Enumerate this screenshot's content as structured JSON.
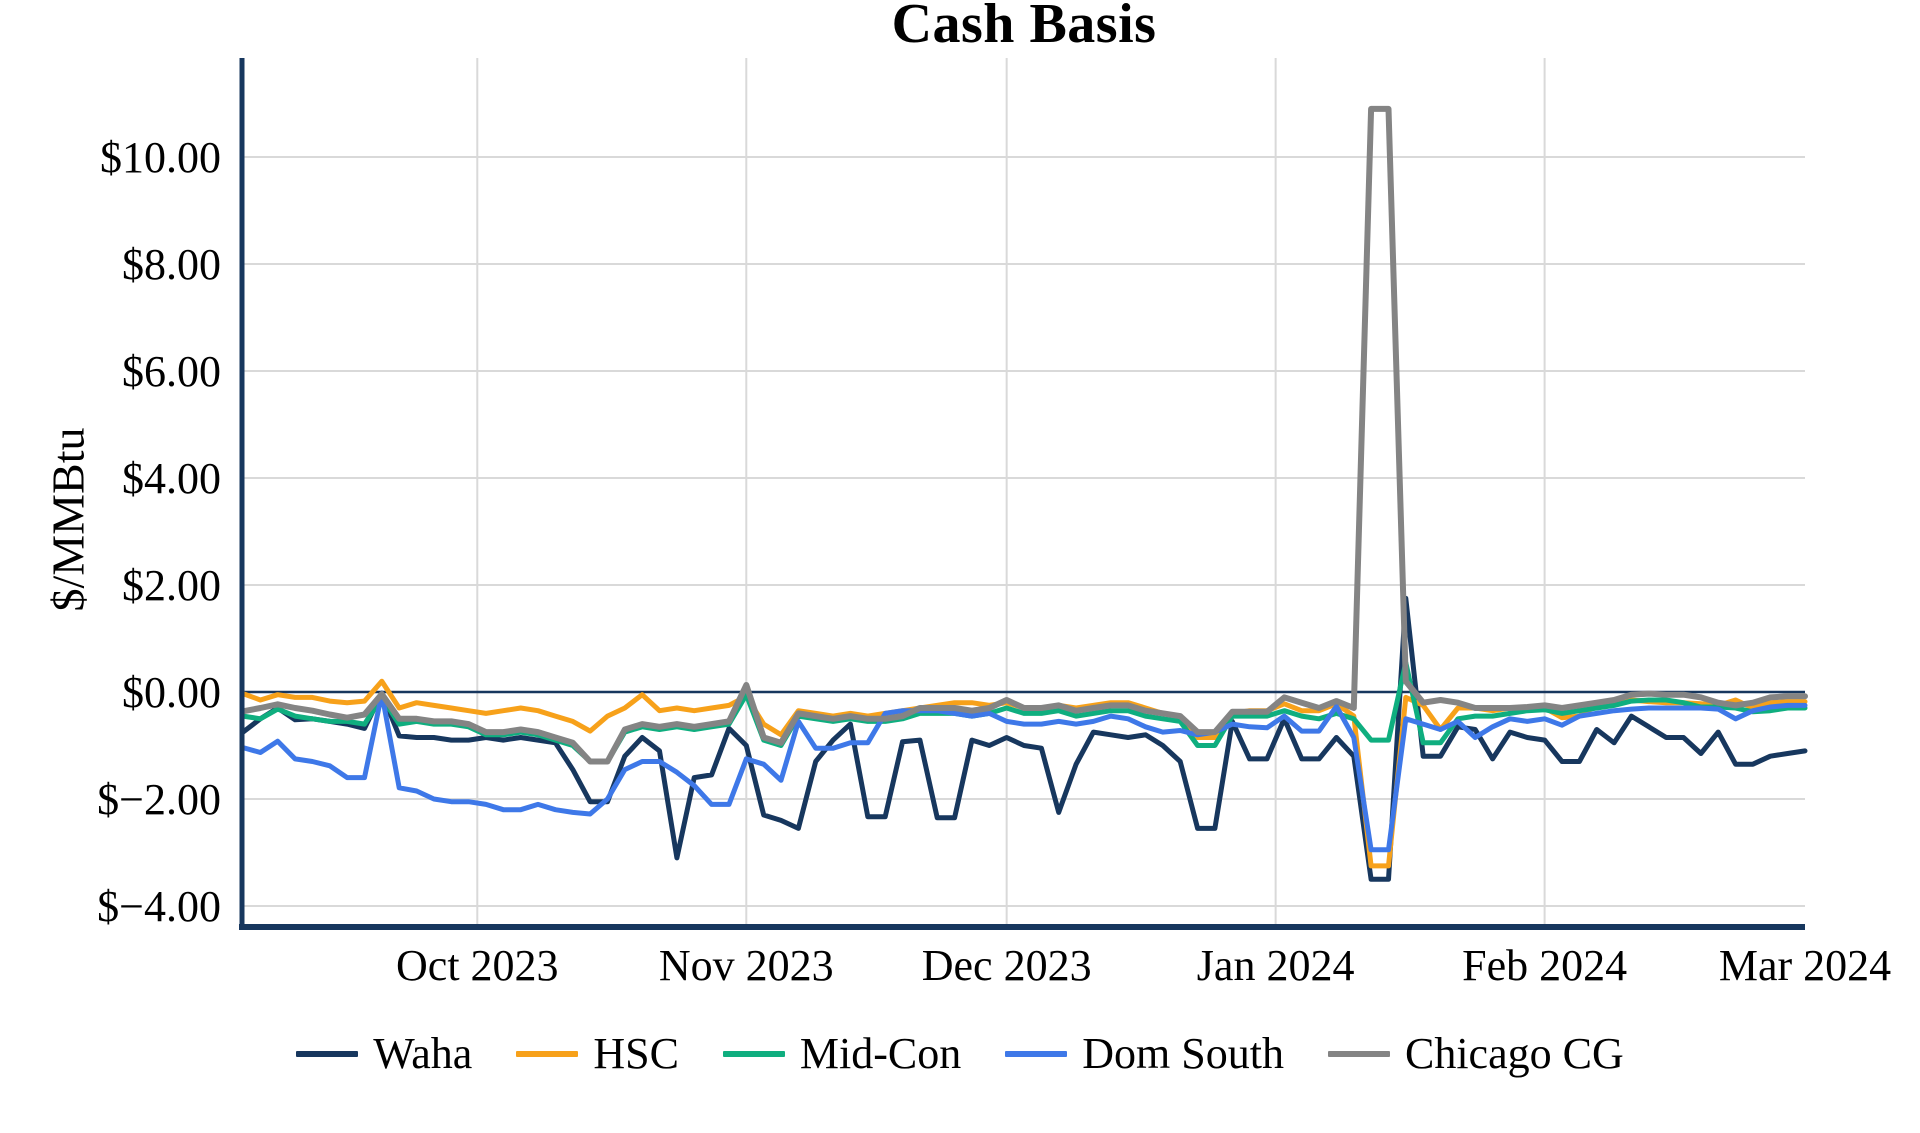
{
  "title": "Cash Basis",
  "y_axis": {
    "title": "$/MMBtu"
  },
  "legend": {
    "items": [
      {
        "label": "Waha",
        "color": "#17375E"
      },
      {
        "label": "HSC",
        "color": "#F7A11A"
      },
      {
        "label": "Mid-Con",
        "color": "#0FAE7F"
      },
      {
        "label": "Dom South",
        "color": "#3E78E8"
      },
      {
        "label": "Chicago CG",
        "color": "#848484"
      }
    ]
  },
  "colors": {
    "axis": "#17375E",
    "zero_line": "#17375E",
    "gridline": "#D9D9D9",
    "background": "#FFFFFF",
    "text": "#000000"
  },
  "chart_data": {
    "type": "line",
    "title": "Cash Basis",
    "ylabel": "$/MMBtu",
    "xlabel": "",
    "ylim": [
      -4.4,
      11.85
    ],
    "grid": true,
    "legend_position": "bottom",
    "x_note": "Daily cash basis sampled every 2 days, early Sep 2023 through Mar 2024; fraction 0 = left edge (~Sep 4 2023), 1 = right edge (~Mar 1 2024)",
    "x_ticks": {
      "labels": [
        "Oct 2023",
        "Nov 2023",
        "Dec 2023",
        "Jan 2024",
        "Feb 2024",
        "Mar 2024"
      ],
      "fracs": [
        0.15,
        0.3222,
        0.4889,
        0.6611,
        0.8333,
        1.0
      ]
    },
    "y_ticks": {
      "labels": [
        "$10.00",
        "$8.00",
        "$6.00",
        "$4.00",
        "$2.00",
        "$0.00",
        "$−2.00",
        "$−4.00"
      ],
      "values": [
        10,
        8,
        6,
        4,
        2,
        0,
        -2,
        -4
      ]
    },
    "series": [
      {
        "name": "Waha",
        "color": "#17375E",
        "values": [
          -0.75,
          -0.5,
          -0.3,
          -0.52,
          -0.5,
          -0.55,
          -0.6,
          -0.68,
          -0.02,
          -0.82,
          -0.85,
          -0.85,
          -0.9,
          -0.9,
          -0.85,
          -0.9,
          -0.85,
          -0.9,
          -0.95,
          -1.45,
          -2.05,
          -2.05,
          -1.2,
          -0.85,
          -1.1,
          -3.1,
          -1.6,
          -1.55,
          -0.68,
          -1.0,
          -2.3,
          -2.4,
          -2.55,
          -1.3,
          -0.9,
          -0.6,
          -2.33,
          -2.33,
          -0.93,
          -0.9,
          -2.35,
          -2.35,
          -0.9,
          -1.0,
          -0.85,
          -1.0,
          -1.05,
          -2.25,
          -1.35,
          -0.75,
          -0.8,
          -0.85,
          -0.8,
          -1.0,
          -1.3,
          -2.55,
          -2.55,
          -0.55,
          -1.25,
          -1.25,
          -0.5,
          -1.25,
          -1.25,
          -0.85,
          -1.2,
          -3.5,
          -3.5,
          1.75,
          -1.2,
          -1.2,
          -0.65,
          -0.7,
          -1.25,
          -0.75,
          -0.85,
          -0.9,
          -1.3,
          -1.3,
          -0.7,
          -0.95,
          -0.45,
          -0.65,
          -0.85,
          -0.85,
          -1.15,
          -0.75,
          -1.35,
          -1.35,
          -1.2,
          -1.15,
          -1.1
        ]
      },
      {
        "name": "HSC",
        "color": "#F7A11A",
        "values": [
          -0.03,
          -0.15,
          -0.05,
          -0.1,
          -0.1,
          -0.17,
          -0.2,
          -0.17,
          0.2,
          -0.3,
          -0.2,
          -0.25,
          -0.3,
          -0.35,
          -0.4,
          -0.35,
          -0.3,
          -0.35,
          -0.45,
          -0.55,
          -0.73,
          -0.45,
          -0.3,
          -0.05,
          -0.35,
          -0.3,
          -0.35,
          -0.3,
          -0.25,
          -0.08,
          -0.6,
          -0.8,
          -0.35,
          -0.4,
          -0.45,
          -0.4,
          -0.45,
          -0.4,
          -0.35,
          -0.3,
          -0.25,
          -0.2,
          -0.2,
          -0.25,
          -0.2,
          -0.3,
          -0.35,
          -0.25,
          -0.3,
          -0.25,
          -0.2,
          -0.2,
          -0.3,
          -0.4,
          -0.45,
          -0.85,
          -0.85,
          -0.4,
          -0.35,
          -0.35,
          -0.22,
          -0.35,
          -0.35,
          -0.22,
          -0.45,
          -3.25,
          -3.25,
          -0.1,
          -0.25,
          -0.7,
          -0.3,
          -0.3,
          -0.35,
          -0.3,
          -0.3,
          -0.3,
          -0.48,
          -0.45,
          -0.25,
          -0.2,
          -0.15,
          -0.18,
          -0.2,
          -0.2,
          -0.22,
          -0.25,
          -0.15,
          -0.3,
          -0.2,
          -0.18,
          -0.18
        ]
      },
      {
        "name": "Mid-Con",
        "color": "#0FAE7F",
        "values": [
          -0.45,
          -0.5,
          -0.32,
          -0.45,
          -0.5,
          -0.55,
          -0.55,
          -0.6,
          -0.1,
          -0.6,
          -0.55,
          -0.6,
          -0.6,
          -0.65,
          -0.8,
          -0.8,
          -0.75,
          -0.8,
          -0.9,
          -1.0,
          -1.3,
          -1.3,
          -0.75,
          -0.65,
          -0.7,
          -0.65,
          -0.7,
          -0.65,
          -0.6,
          -0.05,
          -0.9,
          -1.0,
          -0.45,
          -0.5,
          -0.55,
          -0.5,
          -0.55,
          -0.55,
          -0.5,
          -0.4,
          -0.4,
          -0.4,
          -0.45,
          -0.4,
          -0.3,
          -0.4,
          -0.4,
          -0.35,
          -0.45,
          -0.4,
          -0.35,
          -0.35,
          -0.45,
          -0.5,
          -0.55,
          -1.0,
          -1.0,
          -0.45,
          -0.45,
          -0.45,
          -0.35,
          -0.45,
          -0.5,
          -0.4,
          -0.5,
          -0.9,
          -0.9,
          0.55,
          -0.95,
          -0.95,
          -0.5,
          -0.45,
          -0.45,
          -0.4,
          -0.35,
          -0.33,
          -0.4,
          -0.35,
          -0.3,
          -0.25,
          -0.17,
          -0.15,
          -0.15,
          -0.2,
          -0.28,
          -0.28,
          -0.3,
          -0.37,
          -0.35,
          -0.3,
          -0.3
        ]
      },
      {
        "name": "Dom South",
        "color": "#3E78E8",
        "values": [
          -1.04,
          -1.13,
          -0.92,
          -1.25,
          -1.3,
          -1.38,
          -1.6,
          -1.6,
          -0.03,
          -1.79,
          -1.85,
          -2.0,
          -2.05,
          -2.05,
          -2.1,
          -2.2,
          -2.2,
          -2.1,
          -2.2,
          -2.25,
          -2.28,
          -2.0,
          -1.45,
          -1.3,
          -1.3,
          -1.5,
          -1.75,
          -2.1,
          -2.1,
          -1.25,
          -1.35,
          -1.65,
          -0.55,
          -1.05,
          -1.05,
          -0.95,
          -0.95,
          -0.4,
          -0.35,
          -0.35,
          -0.35,
          -0.4,
          -0.45,
          -0.4,
          -0.55,
          -0.6,
          -0.6,
          -0.55,
          -0.6,
          -0.55,
          -0.45,
          -0.5,
          -0.65,
          -0.75,
          -0.72,
          -0.8,
          -0.75,
          -0.6,
          -0.65,
          -0.67,
          -0.45,
          -0.73,
          -0.73,
          -0.27,
          -0.85,
          -2.95,
          -2.95,
          -0.5,
          -0.6,
          -0.7,
          -0.55,
          -0.85,
          -0.65,
          -0.5,
          -0.55,
          -0.5,
          -0.62,
          -0.45,
          -0.4,
          -0.35,
          -0.32,
          -0.3,
          -0.3,
          -0.3,
          -0.3,
          -0.32,
          -0.5,
          -0.35,
          -0.28,
          -0.25,
          -0.25
        ]
      },
      {
        "name": "Chicago CG",
        "color": "#848484",
        "values": [
          -0.36,
          -0.3,
          -0.23,
          -0.3,
          -0.35,
          -0.42,
          -0.48,
          -0.42,
          -0.04,
          -0.5,
          -0.5,
          -0.55,
          -0.55,
          -0.6,
          -0.75,
          -0.75,
          -0.7,
          -0.75,
          -0.85,
          -0.95,
          -1.3,
          -1.3,
          -0.7,
          -0.6,
          -0.65,
          -0.6,
          -0.65,
          -0.6,
          -0.55,
          0.13,
          -0.85,
          -0.95,
          -0.4,
          -0.45,
          -0.5,
          -0.45,
          -0.5,
          -0.5,
          -0.45,
          -0.3,
          -0.3,
          -0.3,
          -0.35,
          -0.3,
          -0.15,
          -0.3,
          -0.3,
          -0.25,
          -0.35,
          -0.3,
          -0.25,
          -0.25,
          -0.35,
          -0.4,
          -0.45,
          -0.75,
          -0.75,
          -0.37,
          -0.37,
          -0.37,
          -0.1,
          -0.2,
          -0.3,
          -0.17,
          -0.3,
          10.9,
          10.9,
          0.2,
          -0.2,
          -0.15,
          -0.2,
          -0.3,
          -0.3,
          -0.3,
          -0.28,
          -0.25,
          -0.3,
          -0.25,
          -0.2,
          -0.15,
          -0.05,
          -0.03,
          -0.05,
          -0.05,
          -0.1,
          -0.2,
          -0.25,
          -0.2,
          -0.1,
          -0.08,
          -0.08
        ]
      }
    ]
  }
}
